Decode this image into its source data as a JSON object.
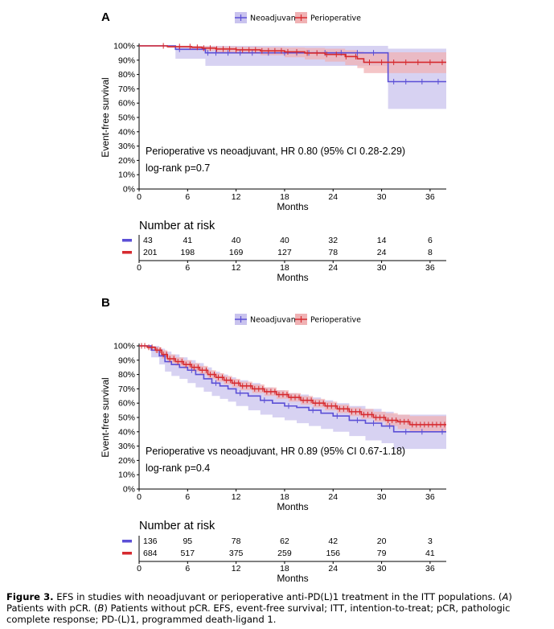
{
  "figure_caption": {
    "label": "Figure 3.",
    "text_1": " EFS in studies with neoadjuvant or perioperative anti-PD(L)1 treatment in the ITT populations. (",
    "a": "A",
    "text_2": ") Patients with pCR. (",
    "b": "B",
    "text_3": ") Patients without pCR. EFS, event-free survival; ITT, intention-to-treat; pCR, pathologic complete response; PD-(L)1, programmed death-ligand 1."
  },
  "colors": {
    "neoadjuvant": "#5b4fd6",
    "perioperative": "#d62a2f",
    "neoadjuvant_ci": "#c9c3ee",
    "perioperative_ci": "#f0b2b4"
  },
  "chart_data": [
    {
      "type": "line",
      "panel_label": "A",
      "title": "",
      "legend": [
        "Neoadjuvant",
        "Perioperative"
      ],
      "legend_position": "top-center",
      "xlabel": "Months",
      "ylabel": "Event-free survival",
      "xlim": [
        0,
        38
      ],
      "ylim": [
        0,
        100
      ],
      "x_ticks": [
        0,
        6,
        12,
        18,
        24,
        30,
        36
      ],
      "y_ticks": [
        "0%",
        "10%",
        "20%",
        "30%",
        "40%",
        "50%",
        "60%",
        "70%",
        "80%",
        "90%",
        "100%"
      ],
      "annotation_1": "Perioperative vs neoadjuvant, HR 0.80 (95% CI 0.28-2.29)",
      "annotation_2": "log-rank p=0.7",
      "series": [
        {
          "name": "Neoadjuvant",
          "color": "#5b4fd6",
          "x": [
            0,
            4.5,
            8.2,
            30.8,
            38
          ],
          "y": [
            100,
            97.6,
            95.1,
            75.0,
            75.0
          ],
          "ci_upper": [
            100,
            100,
            100,
            98,
            98
          ],
          "ci_lower": [
            100,
            91,
            86,
            56,
            56
          ],
          "censor_x": [
            5,
            8.5,
            9.5,
            11,
            12.5,
            14,
            16,
            18,
            19.5,
            21,
            23,
            25,
            27,
            29,
            31.5,
            33,
            35,
            37
          ]
        },
        {
          "name": "Perioperative",
          "color": "#d62a2f",
          "x": [
            0,
            3.5,
            6.5,
            7.8,
            9.5,
            12,
            15,
            18,
            20.5,
            23,
            25.5,
            27,
            27.8,
            38
          ],
          "y": [
            100,
            99.5,
            99.0,
            98.4,
            97.8,
            97.2,
            96.5,
            95.8,
            95.0,
            94.0,
            92.5,
            91.0,
            88.5,
            88.5
          ],
          "ci_upper": [
            100,
            100,
            100,
            99.8,
            99.5,
            99.2,
            99.0,
            98.8,
            98.5,
            98.0,
            97.0,
            96.0,
            95.5,
            95.5
          ],
          "ci_lower": [
            100,
            98.5,
            97.5,
            96.5,
            95.5,
            94.5,
            93.5,
            92.0,
            90.5,
            89.0,
            86.5,
            84.5,
            81.0,
            81.0
          ],
          "censor_x": [
            3,
            5,
            6.3,
            7.2,
            8,
            8.8,
            9.6,
            10.4,
            11.2,
            12,
            12.8,
            13.6,
            14.4,
            15.2,
            16,
            16.8,
            17.6,
            18.4,
            19.5,
            20.8,
            22,
            23.2,
            24.4,
            25.6,
            26.8,
            28.5,
            30,
            31.5,
            33,
            34.5,
            36,
            37.5
          ]
        }
      ],
      "risk_table": {
        "title": "Number at risk",
        "times": [
          0,
          6,
          12,
          18,
          24,
          30,
          36
        ],
        "rows": [
          {
            "name": "Neoadjuvant",
            "values": [
              "43",
              "41",
              "40",
              "40",
              "32",
              "14",
              "6"
            ]
          },
          {
            "name": "Perioperative",
            "values": [
              "201",
              "198",
              "169",
              "127",
              "78",
              "24",
              "8"
            ]
          }
        ],
        "xlabel": "Months"
      }
    },
    {
      "type": "line",
      "panel_label": "B",
      "title": "",
      "legend": [
        "Neoadjuvant",
        "Perioperative"
      ],
      "legend_position": "top-center",
      "xlabel": "Months",
      "ylabel": "Event-free survival",
      "xlim": [
        0,
        38
      ],
      "ylim": [
        0,
        100
      ],
      "x_ticks": [
        0,
        6,
        12,
        18,
        24,
        30,
        36
      ],
      "y_ticks": [
        "0%",
        "10%",
        "20%",
        "30%",
        "40%",
        "50%",
        "60%",
        "70%",
        "80%",
        "90%",
        "100%"
      ],
      "annotation_1": "Perioperative vs neoadjuvant, HR 0.89 (95% CI 0.67-1.18)",
      "annotation_2": "log-rank p=0.4",
      "series": [
        {
          "name": "Neoadjuvant",
          "color": "#5b4fd6",
          "x": [
            0,
            1.5,
            2.5,
            3.2,
            4.0,
            5.0,
            6.0,
            7.0,
            8.0,
            9.0,
            10.0,
            11.0,
            12.0,
            13.5,
            15.0,
            16.5,
            18.0,
            19.5,
            21.0,
            22.5,
            24.0,
            26.0,
            28.0,
            30.0,
            31.5,
            38
          ],
          "y": [
            100,
            97,
            93,
            89,
            87,
            85,
            83,
            80,
            77,
            74,
            72,
            70,
            67,
            65,
            62,
            60,
            58,
            57,
            55,
            53,
            51,
            48,
            46,
            44,
            40,
            40
          ],
          "ci_upper": [
            100,
            100,
            98,
            96,
            94,
            92,
            90,
            88,
            85,
            82,
            80,
            78,
            76,
            74,
            71,
            69,
            67,
            66,
            64,
            62,
            60,
            58,
            56,
            54,
            52,
            52
          ],
          "ci_lower": [
            100,
            92,
            87,
            82,
            79,
            77,
            74,
            71,
            68,
            65,
            63,
            61,
            58,
            55,
            52,
            50,
            48,
            46,
            44,
            42,
            40,
            37,
            34,
            32,
            28,
            28
          ],
          "censor_x": [
            6.5,
            9.5,
            12.5,
            15.5,
            18.5,
            21.5,
            24.5,
            27,
            29,
            31,
            33,
            35,
            37.5
          ]
        },
        {
          "name": "Perioperative",
          "color": "#d62a2f",
          "x": [
            0,
            1.0,
            2.0,
            2.8,
            3.5,
            4.5,
            5.5,
            6.5,
            7.5,
            8.5,
            9.5,
            10.5,
            11.5,
            12.5,
            14.0,
            15.5,
            17.0,
            18.5,
            20.0,
            21.5,
            23.0,
            24.5,
            26.0,
            27.5,
            29.0,
            30.5,
            32.0,
            33.5,
            38
          ],
          "y": [
            100,
            99,
            97,
            94,
            91,
            89,
            87,
            85,
            83,
            80,
            78,
            76,
            74,
            72,
            70,
            68,
            66,
            64,
            62,
            60,
            58,
            56,
            54,
            52,
            50,
            48,
            47,
            45,
            45
          ],
          "ci_upper": [
            100,
            100,
            99,
            97,
            94,
            92,
            90,
            88,
            86,
            83,
            81,
            79,
            77,
            75,
            73,
            71,
            69,
            67,
            65,
            63,
            61,
            59,
            57,
            56,
            54,
            53,
            52,
            51,
            51
          ],
          "ci_lower": [
            100,
            98,
            95,
            91,
            88,
            86,
            84,
            82,
            80,
            77,
            75,
            73,
            71,
            69,
            67,
            65,
            63,
            61,
            59,
            57,
            55,
            53,
            51,
            49,
            47,
            44,
            42,
            40,
            40
          ],
          "censor_x": [
            0.3,
            0.7,
            1.2,
            1.6,
            2.2,
            2.6,
            3.0,
            3.4,
            3.8,
            4.3,
            4.8,
            5.3,
            5.8,
            6.3,
            6.8,
            7.3,
            7.8,
            8.3,
            8.8,
            9.3,
            9.8,
            10.3,
            10.8,
            11.3,
            11.8,
            12.3,
            12.8,
            13.3,
            13.8,
            14.3,
            14.8,
            15.3,
            15.8,
            16.3,
            16.8,
            17.3,
            17.8,
            18.3,
            18.8,
            19.3,
            19.8,
            20.3,
            20.8,
            21.3,
            21.8,
            22.3,
            22.8,
            23.3,
            23.8,
            24.3,
            24.8,
            25.3,
            25.8,
            26.3,
            26.8,
            27.3,
            27.8,
            28.3,
            28.8,
            29.3,
            29.8,
            30.3,
            30.8,
            31.3,
            31.8,
            32.3,
            32.8,
            33.3,
            33.8,
            34.3,
            34.8,
            35.3,
            35.8,
            36.3,
            36.8,
            37.3,
            37.8
          ]
        }
      ],
      "risk_table": {
        "title": "Number at risk",
        "times": [
          0,
          6,
          12,
          18,
          24,
          30,
          36
        ],
        "rows": [
          {
            "name": "Neoadjuvant",
            "values": [
              "136",
              "95",
              "78",
              "62",
              "42",
              "20",
              "3"
            ]
          },
          {
            "name": "Perioperative",
            "values": [
              "684",
              "517",
              "375",
              "259",
              "156",
              "79",
              "41"
            ]
          }
        ],
        "xlabel": "Months"
      }
    }
  ]
}
